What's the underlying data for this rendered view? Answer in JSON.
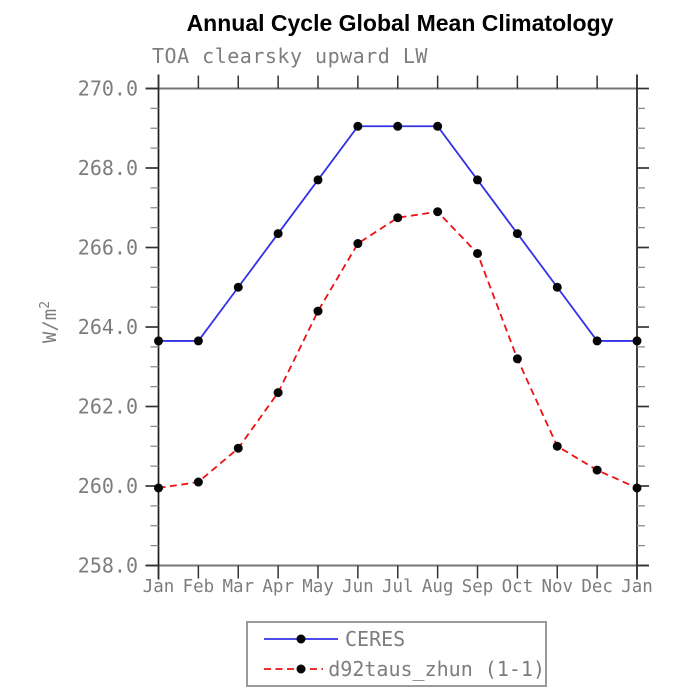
{
  "chart_data": {
    "type": "line",
    "title": "Annual Cycle Global Mean Climatology",
    "subtitle": "TOA clearsky upward LW",
    "ylabel_base": "W/m",
    "ylabel_exponent": "2",
    "categories": [
      "Jan",
      "Feb",
      "Mar",
      "Apr",
      "May",
      "Jun",
      "Jul",
      "Aug",
      "Sep",
      "Oct",
      "Nov",
      "Dec",
      "Jan"
    ],
    "ylim": [
      258.0,
      270.0
    ],
    "ytick_major_step": 2.0,
    "ytick_minor_step": 0.5,
    "ytick_labels": [
      "258.0",
      "260.0",
      "262.0",
      "264.0",
      "266.0",
      "268.0",
      "270.0"
    ],
    "grid": false,
    "legend_position": "bottom-center",
    "series": [
      {
        "name": "CERES",
        "color": "#3232e6",
        "line_style": "solid",
        "marker": "black-dot",
        "values": [
          263.65,
          263.65,
          265.0,
          266.35,
          267.7,
          269.05,
          269.05,
          269.05,
          267.7,
          266.35,
          265.0,
          263.65,
          263.65
        ]
      },
      {
        "name": "d92taus_zhun (1-1)",
        "color": "#ee1111",
        "line_style": "dashed",
        "marker": "black-dot",
        "values": [
          259.95,
          260.1,
          260.95,
          262.35,
          264.4,
          266.1,
          266.75,
          266.9,
          265.85,
          263.2,
          261.0,
          260.4,
          259.95
        ]
      }
    ]
  },
  "colors": {
    "frame_gray": "#747474",
    "axis_black": "#1c1c1c",
    "tick_dark": "#333333",
    "tick_minor_gray": "#8c8c8c",
    "text_gray": "#7d7d7d",
    "marker_black": "#050505",
    "legend_border": "#9a9a9a",
    "background": "#ffffff"
  }
}
